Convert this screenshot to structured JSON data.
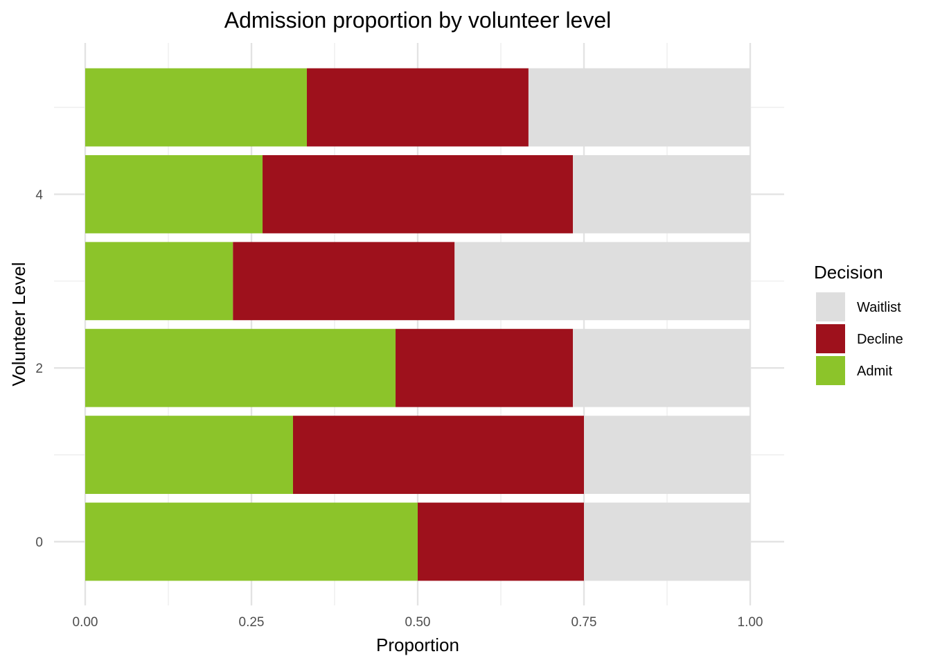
{
  "chart_data": {
    "type": "bar",
    "orientation": "horizontal",
    "stacked": true,
    "title": "Admission proportion by volunteer level",
    "xlabel": "Proportion",
    "ylabel": "Volunteer Level",
    "xlim": [
      0,
      1
    ],
    "ylim": [
      -0.5,
      5.5
    ],
    "x_ticks": [
      0,
      0.25,
      0.5,
      0.75,
      1
    ],
    "x_tick_labels": [
      "0.00",
      "0.25",
      "0.50",
      "0.75",
      "1.00"
    ],
    "y_ticks": [
      0,
      2,
      4
    ],
    "y_tick_labels": [
      "0",
      "2",
      "4"
    ],
    "grid": true,
    "legend_position": "right",
    "legend_title": "Decision",
    "categories": [
      0,
      1,
      2,
      3,
      4,
      5
    ],
    "series": [
      {
        "name": "Admit",
        "color": "#8CC42A",
        "values": [
          0.5,
          0.3125,
          0.4667,
          0.2222,
          0.2667,
          0.3333
        ]
      },
      {
        "name": "Decline",
        "color": "#9E111C",
        "values": [
          0.25,
          0.4375,
          0.2667,
          0.3333,
          0.4667,
          0.3333
        ]
      },
      {
        "name": "Waitlist",
        "color": "#DEDEDE",
        "values": [
          0.25,
          0.25,
          0.2667,
          0.4444,
          0.2667,
          0.3333
        ]
      }
    ],
    "legend_order": [
      "Waitlist",
      "Decline",
      "Admit"
    ]
  }
}
